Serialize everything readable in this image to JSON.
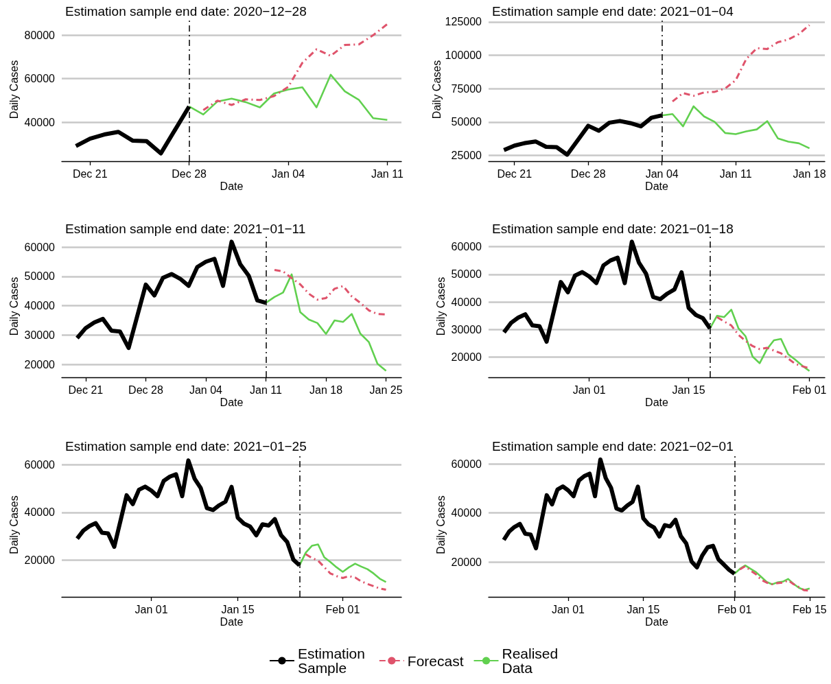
{
  "chart_data": [
    {
      "type": "line",
      "title": "Estimation sample end date: 2020−12−28",
      "xlabel": "Date",
      "ylabel": "Daily Cases",
      "xlim": [
        "2020-12-19",
        "2021-01-12"
      ],
      "xticks": [
        {
          "value": "2020-12-21",
          "label": "Dec 21"
        },
        {
          "value": "2020-12-28",
          "label": "Dec 28"
        },
        {
          "value": "2021-01-04",
          "label": "Jan 04"
        },
        {
          "value": "2021-01-11",
          "label": "Jan 11"
        }
      ],
      "ylim": [
        22000,
        88000
      ],
      "yticks": [
        40000,
        60000,
        80000
      ],
      "grid": "y",
      "legend": "bottom",
      "ref_lines": [
        {
          "axis": "x",
          "value": "2020-12-28",
          "color": "#000000",
          "line_style": "dashed"
        }
      ],
      "series": [
        {
          "name": "Estimation Sample",
          "color": "#000000",
          "line_style": "solid",
          "x": [
            "2020-12-20",
            "2020-12-21",
            "2020-12-22",
            "2020-12-23",
            "2020-12-24",
            "2020-12-25",
            "2020-12-26",
            "2020-12-27",
            "2020-12-28"
          ],
          "values": [
            29000,
            32400,
            34300,
            35500,
            31500,
            31200,
            25600,
            36400,
            47200
          ]
        },
        {
          "name": "Forecast",
          "color": "#df536b",
          "line_style": "dashed",
          "x": [
            "2020-12-29",
            "2020-12-30",
            "2020-12-31",
            "2021-01-01",
            "2021-01-02",
            "2021-01-03",
            "2021-01-04",
            "2021-01-05",
            "2021-01-06",
            "2021-01-07",
            "2021-01-08",
            "2021-01-09",
            "2021-01-10",
            "2021-01-11"
          ],
          "values": [
            45500,
            49900,
            47900,
            50500,
            50200,
            52000,
            56200,
            67300,
            73500,
            70500,
            75500,
            75800,
            80000,
            85100
          ]
        },
        {
          "name": "Realised Data",
          "color": "#61d04f",
          "line_style": "solid",
          "x": [
            "2020-12-28",
            "2020-12-29",
            "2020-12-30",
            "2020-12-31",
            "2021-01-01",
            "2021-01-02",
            "2021-01-03",
            "2021-01-04",
            "2021-01-05",
            "2021-01-06",
            "2021-01-07",
            "2021-01-08",
            "2021-01-09",
            "2021-01-10",
            "2021-01-11"
          ],
          "values": [
            47200,
            43500,
            49500,
            50800,
            49200,
            46800,
            53200,
            55000,
            56000,
            46800,
            61800,
            54200,
            50200,
            41800,
            41000
          ]
        }
      ]
    },
    {
      "type": "line",
      "title": "Estimation sample end date: 2021−01−04",
      "xlabel": "Date",
      "ylabel": "Daily Cases",
      "xlim": [
        "2020-12-18T13:00",
        "2021-01-19T11:00"
      ],
      "xticks": [
        {
          "value": "2020-12-21",
          "label": "Dec 21"
        },
        {
          "value": "2020-12-28",
          "label": "Dec 28"
        },
        {
          "value": "2021-01-04",
          "label": "Jan 04"
        },
        {
          "value": "2021-01-11",
          "label": "Jan 11"
        },
        {
          "value": "2021-01-18",
          "label": "Jan 18"
        }
      ],
      "ylim": [
        20700,
        128000
      ],
      "yticks": [
        25000,
        50000,
        75000,
        100000,
        125000
      ],
      "grid": "y",
      "ref_lines": [
        {
          "axis": "x",
          "value": "2021-01-04",
          "color": "#000000",
          "line_style": "dashed"
        }
      ],
      "series": [
        {
          "name": "Estimation Sample",
          "color": "#000000",
          "line_style": "solid",
          "x": [
            "2020-12-20",
            "2020-12-21",
            "2020-12-22",
            "2020-12-23",
            "2020-12-24",
            "2020-12-25",
            "2020-12-26",
            "2020-12-27",
            "2020-12-28",
            "2020-12-29",
            "2020-12-30",
            "2020-12-31",
            "2021-01-01",
            "2021-01-02",
            "2021-01-03",
            "2021-01-04"
          ],
          "values": [
            29000,
            32400,
            34300,
            35500,
            31500,
            31200,
            25600,
            36400,
            47200,
            43500,
            49500,
            50800,
            49200,
            46800,
            53200,
            55000
          ]
        },
        {
          "name": "Forecast",
          "color": "#df536b",
          "line_style": "dashed",
          "x": [
            "2021-01-05",
            "2021-01-06",
            "2021-01-07",
            "2021-01-08",
            "2021-01-09",
            "2021-01-10",
            "2021-01-11",
            "2021-01-12",
            "2021-01-13",
            "2021-01-14",
            "2021-01-15",
            "2021-01-16",
            "2021-01-17",
            "2021-01-18"
          ],
          "values": [
            65400,
            71700,
            69700,
            72200,
            72600,
            75200,
            81300,
            97200,
            105300,
            104700,
            109800,
            111800,
            115900,
            122600
          ]
        },
        {
          "name": "Realised Data",
          "color": "#61d04f",
          "line_style": "solid",
          "x": [
            "2021-01-04",
            "2021-01-05",
            "2021-01-06",
            "2021-01-07",
            "2021-01-08",
            "2021-01-09",
            "2021-01-10",
            "2021-01-11",
            "2021-01-12",
            "2021-01-13",
            "2021-01-14",
            "2021-01-15",
            "2021-01-16",
            "2021-01-17",
            "2021-01-18"
          ],
          "values": [
            55000,
            56000,
            46800,
            61800,
            54200,
            50200,
            41800,
            41000,
            43000,
            44500,
            50700,
            37800,
            35300,
            34100,
            30400
          ]
        }
      ]
    },
    {
      "type": "line",
      "title": "Estimation sample end date: 2021−01−11",
      "xlabel": "Date",
      "ylabel": "Daily Cases",
      "xlim": [
        "2020-12-18T05:00",
        "2021-01-26T19:00"
      ],
      "xticks": [
        {
          "value": "2020-12-21",
          "label": "Dec 21"
        },
        {
          "value": "2020-12-28",
          "label": "Dec 28"
        },
        {
          "value": "2021-01-04",
          "label": "Jan 04"
        },
        {
          "value": "2021-01-11",
          "label": "Jan 11"
        },
        {
          "value": "2021-01-18",
          "label": "Jan 18"
        },
        {
          "value": "2021-01-25",
          "label": "Jan 25"
        }
      ],
      "ylim": [
        15600,
        64000
      ],
      "yticks": [
        20000,
        30000,
        40000,
        50000,
        60000
      ],
      "grid": "y",
      "ref_lines": [
        {
          "axis": "x",
          "value": "2021-01-11",
          "color": "#000000",
          "line_style": "dashed"
        }
      ],
      "series": [
        {
          "name": "Estimation Sample",
          "color": "#000000",
          "line_style": "solid",
          "x": [
            "2020-12-20",
            "2020-12-21",
            "2020-12-22",
            "2020-12-23",
            "2020-12-24",
            "2020-12-25",
            "2020-12-26",
            "2020-12-27",
            "2020-12-28",
            "2020-12-29",
            "2020-12-30",
            "2020-12-31",
            "2021-01-01",
            "2021-01-02",
            "2021-01-03",
            "2021-01-04",
            "2021-01-05",
            "2021-01-06",
            "2021-01-07",
            "2021-01-08",
            "2021-01-09",
            "2021-01-10",
            "2021-01-11"
          ],
          "values": [
            29000,
            32400,
            34300,
            35500,
            31500,
            31200,
            25600,
            36400,
            47200,
            43500,
            49500,
            50800,
            49200,
            46800,
            53200,
            55000,
            56000,
            46800,
            61800,
            54200,
            50200,
            41800,
            41000
          ]
        },
        {
          "name": "Forecast",
          "color": "#df536b",
          "line_style": "dashed",
          "x": [
            "2021-01-12",
            "2021-01-13",
            "2021-01-14",
            "2021-01-15",
            "2021-01-16",
            "2021-01-17",
            "2021-01-18",
            "2021-01-19",
            "2021-01-20",
            "2021-01-21",
            "2021-01-22",
            "2021-01-23",
            "2021-01-24",
            "2021-01-25"
          ],
          "values": [
            52200,
            51700,
            49400,
            47300,
            44100,
            42100,
            42600,
            45800,
            46700,
            43200,
            41000,
            38400,
            37200,
            37000
          ]
        },
        {
          "name": "Realised Data",
          "color": "#61d04f",
          "line_style": "solid",
          "x": [
            "2021-01-11",
            "2021-01-12",
            "2021-01-13",
            "2021-01-14",
            "2021-01-15",
            "2021-01-16",
            "2021-01-17",
            "2021-01-18",
            "2021-01-19",
            "2021-01-20",
            "2021-01-21",
            "2021-01-22",
            "2021-01-23",
            "2021-01-24",
            "2021-01-25"
          ],
          "values": [
            41000,
            43000,
            44500,
            50700,
            37800,
            35300,
            34100,
            30400,
            35000,
            34500,
            37200,
            30500,
            27600,
            20200,
            17800
          ]
        }
      ]
    },
    {
      "type": "line",
      "title": "Estimation sample end date: 2021−01−18",
      "xlabel": "Date",
      "ylabel": "Daily Cases",
      "xlim": [
        "2020-12-17T20:00",
        "2021-02-03T04:00"
      ],
      "xticks": [
        {
          "value": "2021-01-01",
          "label": "Jan 01"
        },
        {
          "value": "2021-01-15",
          "label": "Jan 15"
        },
        {
          "value": "2021-02-01",
          "label": "Feb 01"
        }
      ],
      "ylim": [
        12700,
        64100
      ],
      "yticks": [
        20000,
        30000,
        40000,
        50000,
        60000
      ],
      "grid": "y",
      "ref_lines": [
        {
          "axis": "x",
          "value": "2021-01-18",
          "color": "#000000",
          "line_style": "dashed"
        }
      ],
      "series": [
        {
          "name": "Estimation Sample",
          "color": "#000000",
          "line_style": "solid",
          "x": [
            "2020-12-20",
            "2020-12-21",
            "2020-12-22",
            "2020-12-23",
            "2020-12-24",
            "2020-12-25",
            "2020-12-26",
            "2020-12-27",
            "2020-12-28",
            "2020-12-29",
            "2020-12-30",
            "2020-12-31",
            "2021-01-01",
            "2021-01-02",
            "2021-01-03",
            "2021-01-04",
            "2021-01-05",
            "2021-01-06",
            "2021-01-07",
            "2021-01-08",
            "2021-01-09",
            "2021-01-10",
            "2021-01-11",
            "2021-01-12",
            "2021-01-13",
            "2021-01-14",
            "2021-01-15",
            "2021-01-16",
            "2021-01-17",
            "2021-01-18"
          ],
          "values": [
            29000,
            32400,
            34300,
            35500,
            31500,
            31200,
            25600,
            36400,
            47200,
            43500,
            49500,
            50800,
            49200,
            46800,
            53200,
            55000,
            56000,
            46800,
            61800,
            54200,
            50200,
            41800,
            41000,
            43000,
            44500,
            50700,
            37800,
            35300,
            34100,
            30400
          ]
        },
        {
          "name": "Forecast",
          "color": "#df536b",
          "line_style": "dashed",
          "x": [
            "2021-01-19",
            "2021-01-20",
            "2021-01-21",
            "2021-01-22",
            "2021-01-23",
            "2021-01-24",
            "2021-01-25",
            "2021-01-26",
            "2021-01-27",
            "2021-01-28",
            "2021-01-29",
            "2021-01-30",
            "2021-01-31",
            "2021-02-01"
          ],
          "values": [
            34500,
            32900,
            31500,
            28100,
            25900,
            24000,
            22900,
            23400,
            22400,
            21400,
            19500,
            17600,
            16700,
            16000
          ]
        },
        {
          "name": "Realised Data",
          "color": "#61d04f",
          "line_style": "solid",
          "x": [
            "2021-01-18",
            "2021-01-19",
            "2021-01-20",
            "2021-01-21",
            "2021-01-22",
            "2021-01-23",
            "2021-01-24",
            "2021-01-25",
            "2021-01-26",
            "2021-01-27",
            "2021-01-28",
            "2021-01-29",
            "2021-01-30",
            "2021-01-31",
            "2021-02-01"
          ],
          "values": [
            30400,
            35000,
            34500,
            37200,
            30500,
            27600,
            20200,
            17800,
            22800,
            26100,
            26600,
            21100,
            19100,
            16900,
            15000
          ]
        }
      ]
    },
    {
      "type": "line",
      "title": "Estimation sample end date: 2021−01−25",
      "xlabel": "Date",
      "ylabel": "Daily Cases",
      "xlim": [
        "2020-12-17T12:00",
        "2021-02-10T12:00"
      ],
      "xticks": [
        {
          "value": "2021-01-01",
          "label": "Jan 01"
        },
        {
          "value": "2021-01-15",
          "label": "Jan 15"
        },
        {
          "value": "2021-02-01",
          "label": "Feb 01"
        }
      ],
      "ylim": [
        4600,
        65000
      ],
      "yticks": [
        20000,
        40000,
        60000
      ],
      "grid": "y",
      "ref_lines": [
        {
          "axis": "x",
          "value": "2021-01-25",
          "color": "#000000",
          "line_style": "dashed"
        }
      ],
      "series": [
        {
          "name": "Estimation Sample",
          "color": "#000000",
          "line_style": "solid",
          "x": [
            "2020-12-20",
            "2020-12-21",
            "2020-12-22",
            "2020-12-23",
            "2020-12-24",
            "2020-12-25",
            "2020-12-26",
            "2020-12-27",
            "2020-12-28",
            "2020-12-29",
            "2020-12-30",
            "2020-12-31",
            "2021-01-01",
            "2021-01-02",
            "2021-01-03",
            "2021-01-04",
            "2021-01-05",
            "2021-01-06",
            "2021-01-07",
            "2021-01-08",
            "2021-01-09",
            "2021-01-10",
            "2021-01-11",
            "2021-01-12",
            "2021-01-13",
            "2021-01-14",
            "2021-01-15",
            "2021-01-16",
            "2021-01-17",
            "2021-01-18",
            "2021-01-19",
            "2021-01-20",
            "2021-01-21",
            "2021-01-22",
            "2021-01-23",
            "2021-01-24",
            "2021-01-25"
          ],
          "values": [
            29000,
            32400,
            34300,
            35500,
            31500,
            31200,
            25600,
            36400,
            47200,
            43500,
            49500,
            50800,
            49200,
            46800,
            53200,
            55000,
            56000,
            46800,
            61800,
            54200,
            50200,
            41800,
            41000,
            43000,
            44500,
            50700,
            37800,
            35300,
            34100,
            30400,
            35000,
            34500,
            37200,
            30500,
            27600,
            20200,
            17800
          ]
        },
        {
          "name": "Forecast",
          "color": "#df536b",
          "line_style": "dashed",
          "x": [
            "2021-01-26",
            "2021-01-27",
            "2021-01-28",
            "2021-01-29",
            "2021-01-30",
            "2021-01-31",
            "2021-02-01",
            "2021-02-02",
            "2021-02-03",
            "2021-02-04",
            "2021-02-05",
            "2021-02-06",
            "2021-02-07",
            "2021-02-08"
          ],
          "values": [
            22500,
            20900,
            19800,
            17100,
            14400,
            13300,
            12500,
            13300,
            12700,
            11100,
            10000,
            9100,
            8100,
            7600
          ]
        },
        {
          "name": "Realised Data",
          "color": "#61d04f",
          "line_style": "solid",
          "x": [
            "2021-01-25",
            "2021-01-26",
            "2021-01-27",
            "2021-01-28",
            "2021-01-29",
            "2021-01-30",
            "2021-01-31",
            "2021-02-01",
            "2021-02-02",
            "2021-02-03",
            "2021-02-04",
            "2021-02-05",
            "2021-02-06",
            "2021-02-07",
            "2021-02-08"
          ],
          "values": [
            17800,
            23100,
            26000,
            26600,
            21200,
            19200,
            17000,
            15100,
            17000,
            18500,
            17300,
            16200,
            14400,
            12200,
            10800
          ]
        }
      ]
    },
    {
      "type": "line",
      "title": "Estimation sample end date: 2021−02−01",
      "xlabel": "Date",
      "ylabel": "Daily Cases",
      "xlim": [
        "2020-12-17T04:00",
        "2021-02-17T20:00"
      ],
      "xticks": [
        {
          "value": "2021-01-01",
          "label": "Jan 01"
        },
        {
          "value": "2021-01-15",
          "label": "Jan 15"
        },
        {
          "value": "2021-02-01",
          "label": "Feb 01"
        },
        {
          "value": "2021-02-15",
          "label": "Feb 15"
        }
      ],
      "ylim": [
        5800,
        64500
      ],
      "yticks": [
        20000,
        40000,
        60000
      ],
      "grid": "y",
      "ref_lines": [
        {
          "axis": "x",
          "value": "2021-02-01",
          "color": "#000000",
          "line_style": "dashed"
        }
      ],
      "series": [
        {
          "name": "Estimation Sample",
          "color": "#000000",
          "line_style": "solid",
          "x": [
            "2020-12-20",
            "2020-12-21",
            "2020-12-22",
            "2020-12-23",
            "2020-12-24",
            "2020-12-25",
            "2020-12-26",
            "2020-12-27",
            "2020-12-28",
            "2020-12-29",
            "2020-12-30",
            "2020-12-31",
            "2021-01-01",
            "2021-01-02",
            "2021-01-03",
            "2021-01-04",
            "2021-01-05",
            "2021-01-06",
            "2021-01-07",
            "2021-01-08",
            "2021-01-09",
            "2021-01-10",
            "2021-01-11",
            "2021-01-12",
            "2021-01-13",
            "2021-01-14",
            "2021-01-15",
            "2021-01-16",
            "2021-01-17",
            "2021-01-18",
            "2021-01-19",
            "2021-01-20",
            "2021-01-21",
            "2021-01-22",
            "2021-01-23",
            "2021-01-24",
            "2021-01-25",
            "2021-01-26",
            "2021-01-27",
            "2021-01-28",
            "2021-01-29",
            "2021-01-30",
            "2021-01-31",
            "2021-02-01"
          ],
          "values": [
            29000,
            32400,
            34300,
            35500,
            31500,
            31200,
            25600,
            36400,
            47200,
            43500,
            49500,
            50800,
            49200,
            46800,
            53200,
            55000,
            56000,
            46800,
            61800,
            54200,
            50200,
            41800,
            41000,
            43000,
            44500,
            50700,
            37800,
            35300,
            34100,
            30400,
            35000,
            34500,
            37200,
            30500,
            27600,
            20200,
            17800,
            22700,
            26000,
            26600,
            21100,
            19000,
            16800,
            15200
          ]
        },
        {
          "name": "Forecast",
          "color": "#df536b",
          "line_style": "dashed",
          "x": [
            "2021-02-02",
            "2021-02-03",
            "2021-02-04",
            "2021-02-05",
            "2021-02-06",
            "2021-02-07",
            "2021-02-08",
            "2021-02-09",
            "2021-02-10",
            "2021-02-11",
            "2021-02-12",
            "2021-02-13",
            "2021-02-14",
            "2021-02-15"
          ],
          "values": [
            17000,
            18300,
            16500,
            15000,
            12700,
            11600,
            11000,
            11400,
            11600,
            12500,
            11000,
            9800,
            8500,
            8300
          ]
        },
        {
          "name": "Realised Data",
          "color": "#61d04f",
          "line_style": "solid",
          "x": [
            "2021-02-01",
            "2021-02-02",
            "2021-02-03",
            "2021-02-04",
            "2021-02-05",
            "2021-02-06",
            "2021-02-07",
            "2021-02-08",
            "2021-02-09",
            "2021-02-10",
            "2021-02-11",
            "2021-02-12",
            "2021-02-13",
            "2021-02-14",
            "2021-02-15"
          ],
          "values": [
            15200,
            17200,
            18600,
            17200,
            15900,
            13900,
            11900,
            10900,
            11700,
            12000,
            13100,
            11100,
            9500,
            8600,
            9200
          ]
        }
      ]
    }
  ]
}
